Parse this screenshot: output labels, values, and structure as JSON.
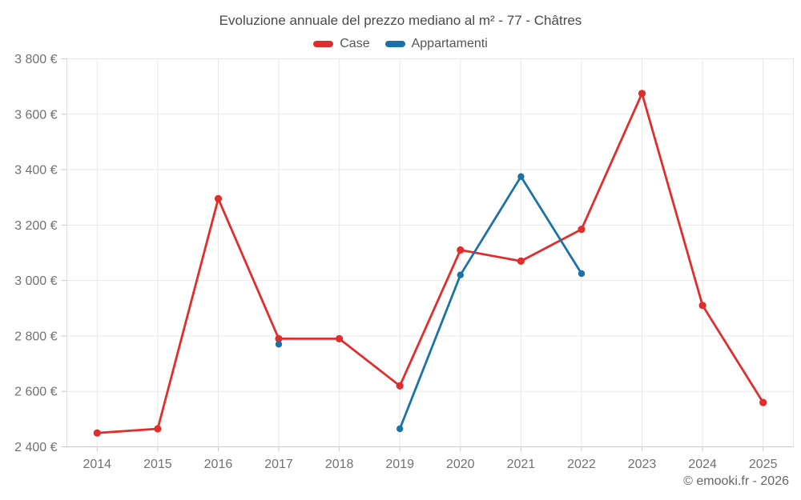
{
  "chart_data": {
    "type": "line",
    "title": "Evoluzione annuale del prezzo mediano al m² - 77 - Châtres",
    "attribution": "© emooki.fr - 2026",
    "legend_position": "top",
    "grid": true,
    "categories": [
      "2014",
      "2015",
      "2016",
      "2017",
      "2018",
      "2019",
      "2020",
      "2021",
      "2022",
      "2023",
      "2024",
      "2025"
    ],
    "series": [
      {
        "name": "Case",
        "color": "#e02d2d",
        "values": [
          2450,
          2465,
          3295,
          2790,
          2790,
          2620,
          3110,
          3070,
          3185,
          3675,
          2910,
          2560
        ]
      },
      {
        "name": "Appartamenti",
        "color": "#1c72a8",
        "values": [
          null,
          null,
          null,
          2770,
          null,
          2465,
          3020,
          3375,
          3025,
          null,
          null,
          null
        ]
      }
    ],
    "ylim": [
      2400,
      3800
    ],
    "ytick_step": 200,
    "yticks": [
      2400,
      2600,
      2800,
      3000,
      3200,
      3400,
      3600,
      3800
    ],
    "ytick_labels": [
      "2 400 €",
      "2 600 €",
      "2 800 €",
      "3 000 €",
      "3 200 €",
      "3 400 €",
      "3 600 €",
      "3 800 €"
    ],
    "colors": {
      "grid": "#e8e8e8",
      "axis": "#c9c9c9",
      "tick": "#c9c9c9",
      "axis_text": "#717171",
      "title_text": "#4a4a4a",
      "legend_text": "#555555"
    }
  }
}
